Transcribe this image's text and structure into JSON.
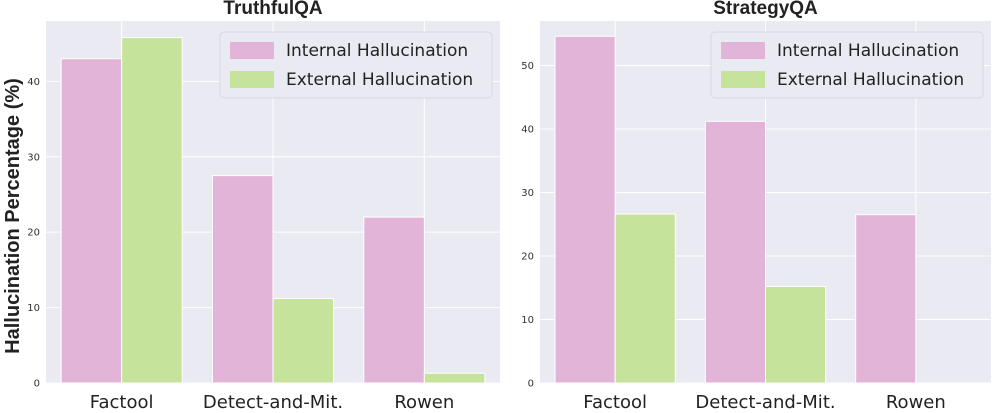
{
  "ylabel": "Hallucination Percentage (%)",
  "colors": {
    "internal": "#e2b4d8",
    "external": "#c5e39a",
    "plot_bg": "#eaeaf2",
    "grid": "#ffffff",
    "legend_bg": "#eaeaf2"
  },
  "chart_data": [
    {
      "type": "bar",
      "title": "TruthfulQA",
      "categories": [
        "Factool",
        "Detect-and-Mit.",
        "Rowen"
      ],
      "series": [
        {
          "name": "Internal Hallucination",
          "values": [
            43.0,
            27.5,
            22.0
          ]
        },
        {
          "name": "External Hallucination",
          "values": [
            45.8,
            11.2,
            1.3
          ]
        }
      ],
      "ylim": [
        0,
        48
      ],
      "yticks": [
        0,
        10,
        20,
        30,
        40
      ],
      "ylabel": "Hallucination Percentage (%)",
      "xlabel": "",
      "legend": "top-right",
      "grid": true
    },
    {
      "type": "bar",
      "title": "StrategyQA",
      "categories": [
        "Factool",
        "Detect-and-Mit.",
        "Rowen"
      ],
      "series": [
        {
          "name": "Internal Hallucination",
          "values": [
            54.6,
            41.2,
            26.5
          ]
        },
        {
          "name": "External Hallucination",
          "values": [
            26.6,
            15.2,
            0
          ]
        }
      ],
      "ylim": [
        0,
        57
      ],
      "yticks": [
        0,
        10,
        20,
        30,
        40,
        50
      ],
      "ylabel": "",
      "xlabel": "",
      "legend": "top-right",
      "grid": true
    }
  ]
}
